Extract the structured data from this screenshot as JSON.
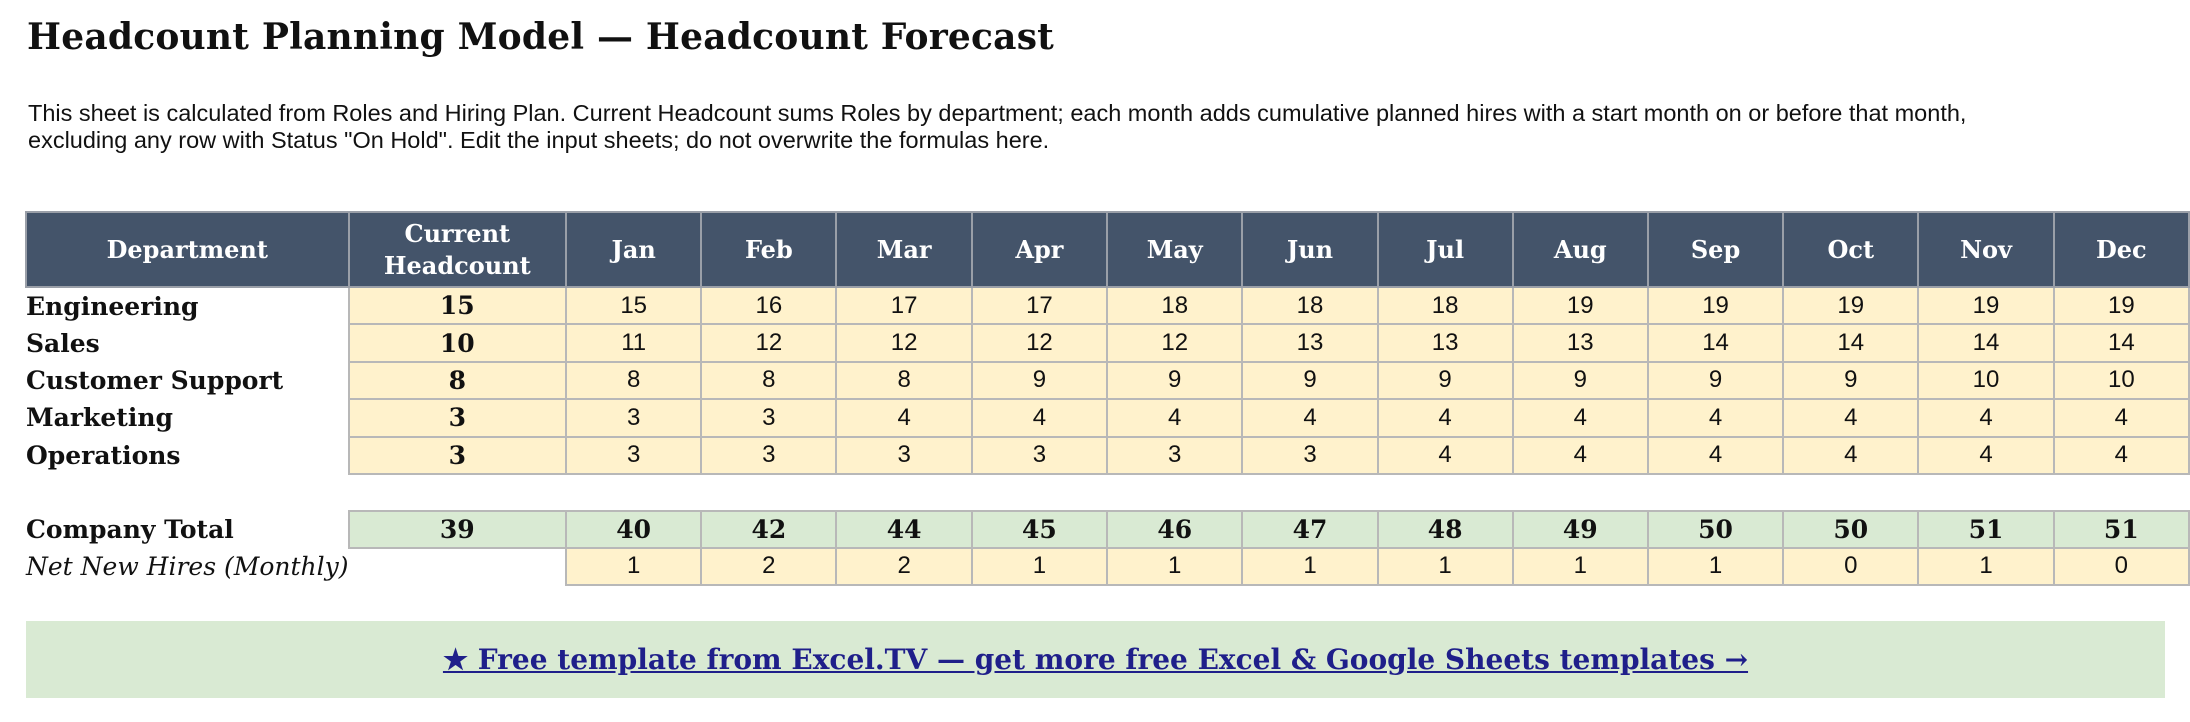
{
  "title": "Headcount Planning Model — Headcount Forecast",
  "description": {
    "line1": "This sheet is calculated from Roles and Hiring Plan. Current Headcount sums Roles by department; each month adds cumulative planned hires with a start month on or before that month,",
    "line2": "excluding any row with Status \"On Hold\". Edit the input sheets; do not overwrite the formulas here."
  },
  "table": {
    "headers": {
      "department": "Department",
      "current_line1": "Current",
      "current_line2": "Headcount",
      "months": [
        "Jan",
        "Feb",
        "Mar",
        "Apr",
        "May",
        "Jun",
        "Jul",
        "Aug",
        "Sep",
        "Oct",
        "Nov",
        "Dec"
      ]
    },
    "rows": [
      {
        "department": "Engineering",
        "current": "15",
        "months": [
          "15",
          "16",
          "17",
          "17",
          "18",
          "18",
          "18",
          "19",
          "19",
          "19",
          "19",
          "19"
        ]
      },
      {
        "department": "Sales",
        "current": "10",
        "months": [
          "11",
          "12",
          "12",
          "12",
          "12",
          "13",
          "13",
          "13",
          "14",
          "14",
          "14",
          "14"
        ]
      },
      {
        "department": "Customer Support",
        "current": "8",
        "months": [
          "8",
          "8",
          "8",
          "9",
          "9",
          "9",
          "9",
          "9",
          "9",
          "9",
          "10",
          "10"
        ]
      },
      {
        "department": "Marketing",
        "current": "3",
        "months": [
          "3",
          "3",
          "4",
          "4",
          "4",
          "4",
          "4",
          "4",
          "4",
          "4",
          "4",
          "4"
        ]
      },
      {
        "department": "Operations",
        "current": "3",
        "months": [
          "3",
          "3",
          "3",
          "3",
          "3",
          "3",
          "4",
          "4",
          "4",
          "4",
          "4",
          "4"
        ]
      }
    ],
    "total": {
      "label": "Company Total",
      "current": "39",
      "months": [
        "40",
        "42",
        "44",
        "45",
        "46",
        "47",
        "48",
        "49",
        "50",
        "50",
        "51",
        "51"
      ]
    },
    "net_new": {
      "label": "Net New Hires (Monthly)",
      "months": [
        "1",
        "2",
        "2",
        "1",
        "1",
        "1",
        "1",
        "1",
        "1",
        "0",
        "1",
        "0"
      ]
    }
  },
  "banner": {
    "link_text": "★ Free template from Excel.TV — get more free Excel & Google Sheets templates →"
  },
  "colors": {
    "header_bg": "#44546a",
    "input_bg": "#fff2cc",
    "total_bg": "#d9ead3",
    "link": "#1f1f8a"
  }
}
